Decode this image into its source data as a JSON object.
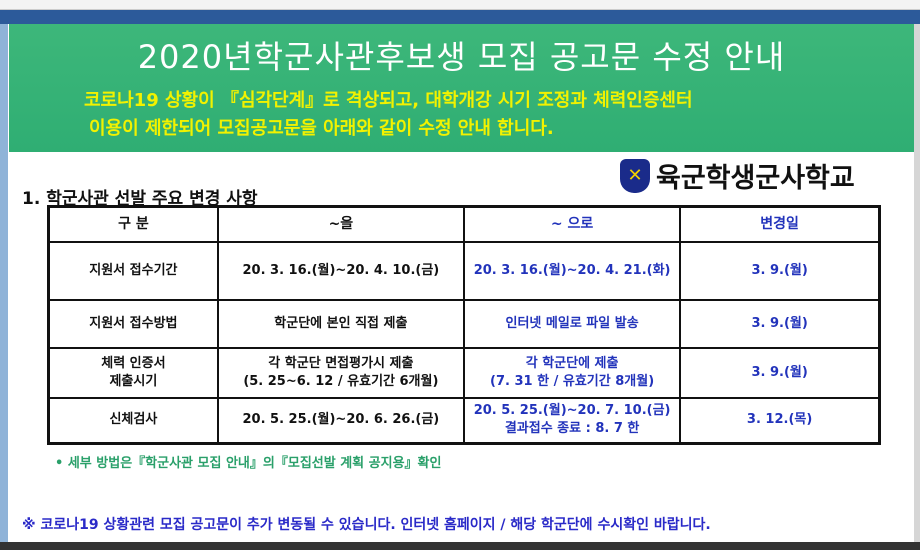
{
  "banner": {
    "title": "2020년학군사관후보생 모집 공고문 수정 안내",
    "subtitle_line1": "코로나19 상황이 『심각단계』로 격상되고, 대학개강 시기 조정과 체력인증센터",
    "subtitle_line2": "이용이 제한되어 모집공고문을 아래와 같이 수정 안내 합니다.",
    "color": "#35b276",
    "subtitle_color": "#f2f200"
  },
  "logo": {
    "text": "육군학생군사학교",
    "icon": "army-emblem-icon"
  },
  "section_title": "1. 학군사관 선발 주요 변경 사항",
  "table": {
    "headers": [
      "구 분",
      "~을",
      "~ 으로",
      "변경일"
    ],
    "rows": [
      {
        "category": "지원서 접수기간",
        "before": "20. 3. 16.(월)~20. 4. 10.(금)",
        "after": "20. 3. 16.(월)~20. 4. 21.(화)",
        "date": "3. 9.(월)"
      },
      {
        "category": "지원서 접수방법",
        "before": "학군단에 본인 직접 제출",
        "after": "인터넷 메일로 파일 발송",
        "date": "3. 9.(월)"
      },
      {
        "category": "체력 인증서\n제출시기",
        "before": "각 학군단 면접평가시 제출\n(5. 25~6. 12 / 유효기간 6개월)",
        "after": "각 학군단에 제출\n(7. 31 한 / 유효기간 8개월)",
        "date": "3. 9.(월)"
      },
      {
        "category": "신체검사",
        "before": "20. 5. 25.(월)~20. 6. 26.(금)",
        "after": "20. 5. 25.(월)~20. 7. 10.(금)\n결과접수 종료 : 8. 7 한",
        "date": "3. 12.(목)"
      }
    ]
  },
  "note": "• 세부 방법은『학군사관 모집 안내』의『모집선발 계획 공지용』확인",
  "footer": "※ 코로나19 상황관련 모집 공고문이 추가 변동될 수 있습니다. 인터넷 홈페이지 / 해당 학군단에 수시확인 바랍니다."
}
